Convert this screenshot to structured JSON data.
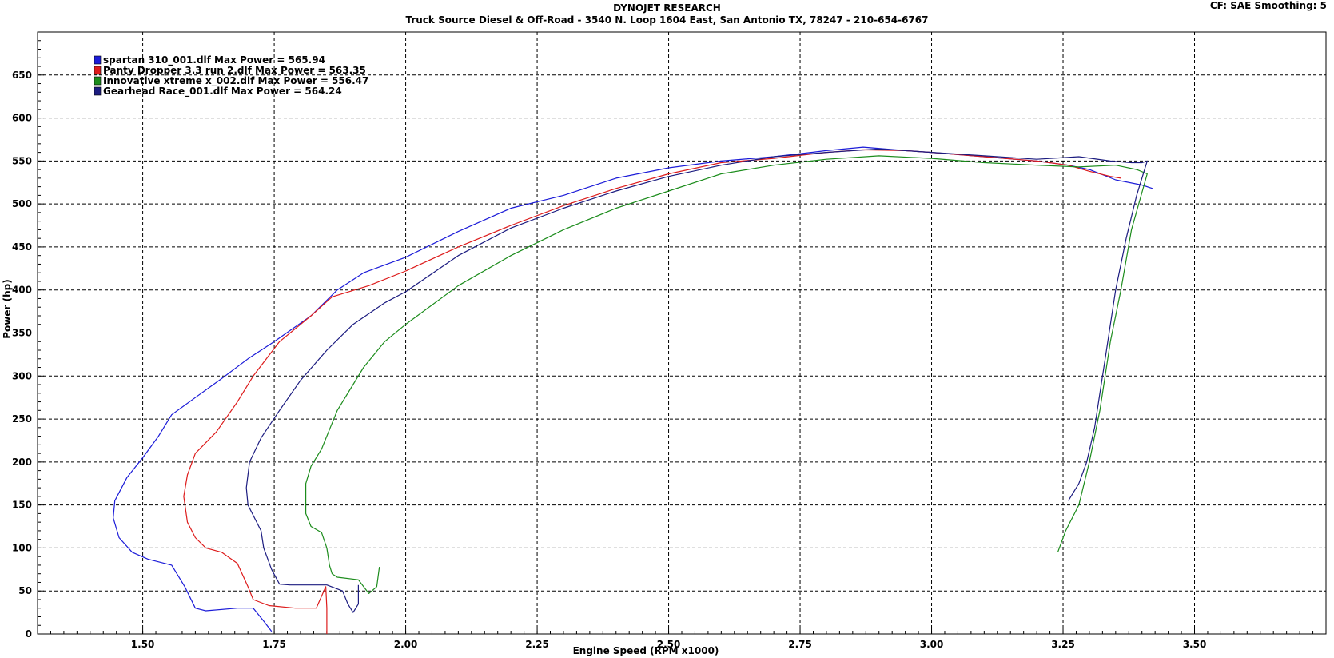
{
  "header": {
    "title": "DYNOJET RESEARCH",
    "subtitle": "Truck Source Diesel & Off-Road - 3540 N. Loop 1604 East, San Antonio  TX, 78247 - 210-654-6767",
    "settings": "CF: SAE  Smoothing: 5"
  },
  "chart_data": {
    "type": "line",
    "title": "DYNOJET RESEARCH",
    "xlabel": "Engine Speed (RPM x1000)",
    "ylabel": "Power (hp)",
    "xlim": [
      1.3,
      3.75
    ],
    "ylim": [
      0,
      700
    ],
    "xticks": [
      1.5,
      1.75,
      2.0,
      2.25,
      2.5,
      2.75,
      3.0,
      3.25,
      3.5
    ],
    "xtick_labels": [
      "1.50",
      "1.75",
      "2.00",
      "2.25",
      "2.50",
      "2.75",
      "3.00",
      "3.25",
      "3.50"
    ],
    "yticks": [
      0,
      50,
      100,
      150,
      200,
      250,
      300,
      350,
      400,
      450,
      500,
      550,
      600,
      650
    ],
    "ytick_labels": [
      "0",
      "50",
      "100",
      "150",
      "200",
      "250",
      "300",
      "350",
      "400",
      "450",
      "500",
      "550",
      "600",
      "650"
    ],
    "grid": true,
    "legend_position": "top-left",
    "series": [
      {
        "name": "spartan 310_001.dlf Max Power = 565.94",
        "color": "#1c1cd8",
        "points": [
          [
            1.745,
            3
          ],
          [
            1.73,
            15
          ],
          [
            1.71,
            30
          ],
          [
            1.68,
            30
          ],
          [
            1.62,
            27
          ],
          [
            1.6,
            30
          ],
          [
            1.58,
            55
          ],
          [
            1.555,
            80
          ],
          [
            1.51,
            87
          ],
          [
            1.48,
            95
          ],
          [
            1.455,
            112
          ],
          [
            1.444,
            135
          ],
          [
            1.447,
            155
          ],
          [
            1.47,
            182
          ],
          [
            1.5,
            205
          ],
          [
            1.53,
            230
          ],
          [
            1.555,
            255
          ],
          [
            1.6,
            275
          ],
          [
            1.65,
            297
          ],
          [
            1.7,
            320
          ],
          [
            1.75,
            340
          ],
          [
            1.82,
            370
          ],
          [
            1.87,
            400
          ],
          [
            1.92,
            420
          ],
          [
            2.0,
            438
          ],
          [
            2.1,
            468
          ],
          [
            2.2,
            495
          ],
          [
            2.3,
            510
          ],
          [
            2.4,
            530
          ],
          [
            2.5,
            542
          ],
          [
            2.6,
            550
          ],
          [
            2.7,
            555
          ],
          [
            2.8,
            562
          ],
          [
            2.87,
            566
          ],
          [
            2.95,
            562
          ],
          [
            3.0,
            560
          ],
          [
            3.1,
            555
          ],
          [
            3.2,
            550
          ],
          [
            3.26,
            545
          ],
          [
            3.3,
            540
          ],
          [
            3.35,
            528
          ],
          [
            3.4,
            522
          ],
          [
            3.42,
            518
          ]
        ]
      },
      {
        "name": "Panty Dropper 3.3 run 2.dlf Max Power = 563.35",
        "color": "#dd1c1c",
        "points": [
          [
            1.85,
            0
          ],
          [
            1.85,
            30
          ],
          [
            1.848,
            55
          ],
          [
            1.83,
            30
          ],
          [
            1.79,
            30
          ],
          [
            1.74,
            33
          ],
          [
            1.71,
            40
          ],
          [
            1.7,
            55
          ],
          [
            1.68,
            82
          ],
          [
            1.65,
            95
          ],
          [
            1.62,
            100
          ],
          [
            1.6,
            112
          ],
          [
            1.585,
            130
          ],
          [
            1.578,
            160
          ],
          [
            1.585,
            185
          ],
          [
            1.6,
            210
          ],
          [
            1.64,
            235
          ],
          [
            1.68,
            270
          ],
          [
            1.71,
            300
          ],
          [
            1.76,
            340
          ],
          [
            1.82,
            370
          ],
          [
            1.86,
            392
          ],
          [
            1.93,
            405
          ],
          [
            2.0,
            422
          ],
          [
            2.1,
            450
          ],
          [
            2.2,
            475
          ],
          [
            2.3,
            498
          ],
          [
            2.4,
            518
          ],
          [
            2.5,
            535
          ],
          [
            2.6,
            548
          ],
          [
            2.7,
            553
          ],
          [
            2.8,
            560
          ],
          [
            2.87,
            563
          ],
          [
            2.95,
            562
          ],
          [
            3.0,
            560
          ],
          [
            3.1,
            555
          ],
          [
            3.2,
            550
          ],
          [
            3.26,
            545
          ],
          [
            3.3,
            538
          ],
          [
            3.34,
            532
          ],
          [
            3.36,
            530
          ]
        ]
      },
      {
        "name": "Innovative xtreme x_002.dlf Max Power = 556.47",
        "color": "#1c8c1c",
        "points": [
          [
            1.95,
            78
          ],
          [
            1.945,
            55
          ],
          [
            1.93,
            47
          ],
          [
            1.92,
            55
          ],
          [
            1.91,
            63
          ],
          [
            1.87,
            66
          ],
          [
            1.86,
            70
          ],
          [
            1.855,
            80
          ],
          [
            1.85,
            100
          ],
          [
            1.84,
            118
          ],
          [
            1.82,
            125
          ],
          [
            1.81,
            140
          ],
          [
            1.81,
            175
          ],
          [
            1.82,
            195
          ],
          [
            1.84,
            215
          ],
          [
            1.87,
            260
          ],
          [
            1.92,
            310
          ],
          [
            1.96,
            340
          ],
          [
            2.0,
            360
          ],
          [
            2.1,
            405
          ],
          [
            2.2,
            440
          ],
          [
            2.3,
            470
          ],
          [
            2.4,
            495
          ],
          [
            2.5,
            515
          ],
          [
            2.6,
            535
          ],
          [
            2.7,
            545
          ],
          [
            2.8,
            552
          ],
          [
            2.9,
            556
          ],
          [
            3.0,
            553
          ],
          [
            3.1,
            548
          ],
          [
            3.2,
            545
          ],
          [
            3.28,
            543
          ],
          [
            3.35,
            545
          ],
          [
            3.39,
            540
          ],
          [
            3.41,
            535
          ],
          [
            3.38,
            470
          ],
          [
            3.36,
            400
          ],
          [
            3.34,
            340
          ],
          [
            3.32,
            260
          ],
          [
            3.3,
            200
          ],
          [
            3.28,
            150
          ],
          [
            3.255,
            120
          ],
          [
            3.24,
            95
          ]
        ]
      },
      {
        "name": "Gearhead Race_001.dlf Max Power = 564.24",
        "color": "#1c1c80",
        "points": [
          [
            1.91,
            57
          ],
          [
            1.91,
            35
          ],
          [
            1.9,
            25
          ],
          [
            1.89,
            35
          ],
          [
            1.88,
            50
          ],
          [
            1.85,
            57
          ],
          [
            1.8,
            57
          ],
          [
            1.78,
            57
          ],
          [
            1.76,
            58
          ],
          [
            1.745,
            75
          ],
          [
            1.73,
            100
          ],
          [
            1.725,
            120
          ],
          [
            1.7,
            150
          ],
          [
            1.697,
            170
          ],
          [
            1.703,
            200
          ],
          [
            1.725,
            228
          ],
          [
            1.76,
            260
          ],
          [
            1.8,
            295
          ],
          [
            1.85,
            330
          ],
          [
            1.9,
            360
          ],
          [
            1.96,
            385
          ],
          [
            2.0,
            398
          ],
          [
            2.1,
            440
          ],
          [
            2.2,
            472
          ],
          [
            2.3,
            495
          ],
          [
            2.4,
            515
          ],
          [
            2.5,
            532
          ],
          [
            2.6,
            545
          ],
          [
            2.7,
            555
          ],
          [
            2.8,
            560
          ],
          [
            2.9,
            564
          ],
          [
            3.0,
            560
          ],
          [
            3.1,
            556
          ],
          [
            3.2,
            552
          ],
          [
            3.28,
            555
          ],
          [
            3.34,
            550
          ],
          [
            3.38,
            548
          ],
          [
            3.4,
            548
          ],
          [
            3.41,
            550
          ],
          [
            3.39,
            510
          ],
          [
            3.37,
            460
          ],
          [
            3.35,
            400
          ],
          [
            3.33,
            320
          ],
          [
            3.31,
            240
          ],
          [
            3.295,
            200
          ],
          [
            3.28,
            175
          ],
          [
            3.26,
            155
          ]
        ]
      }
    ]
  }
}
